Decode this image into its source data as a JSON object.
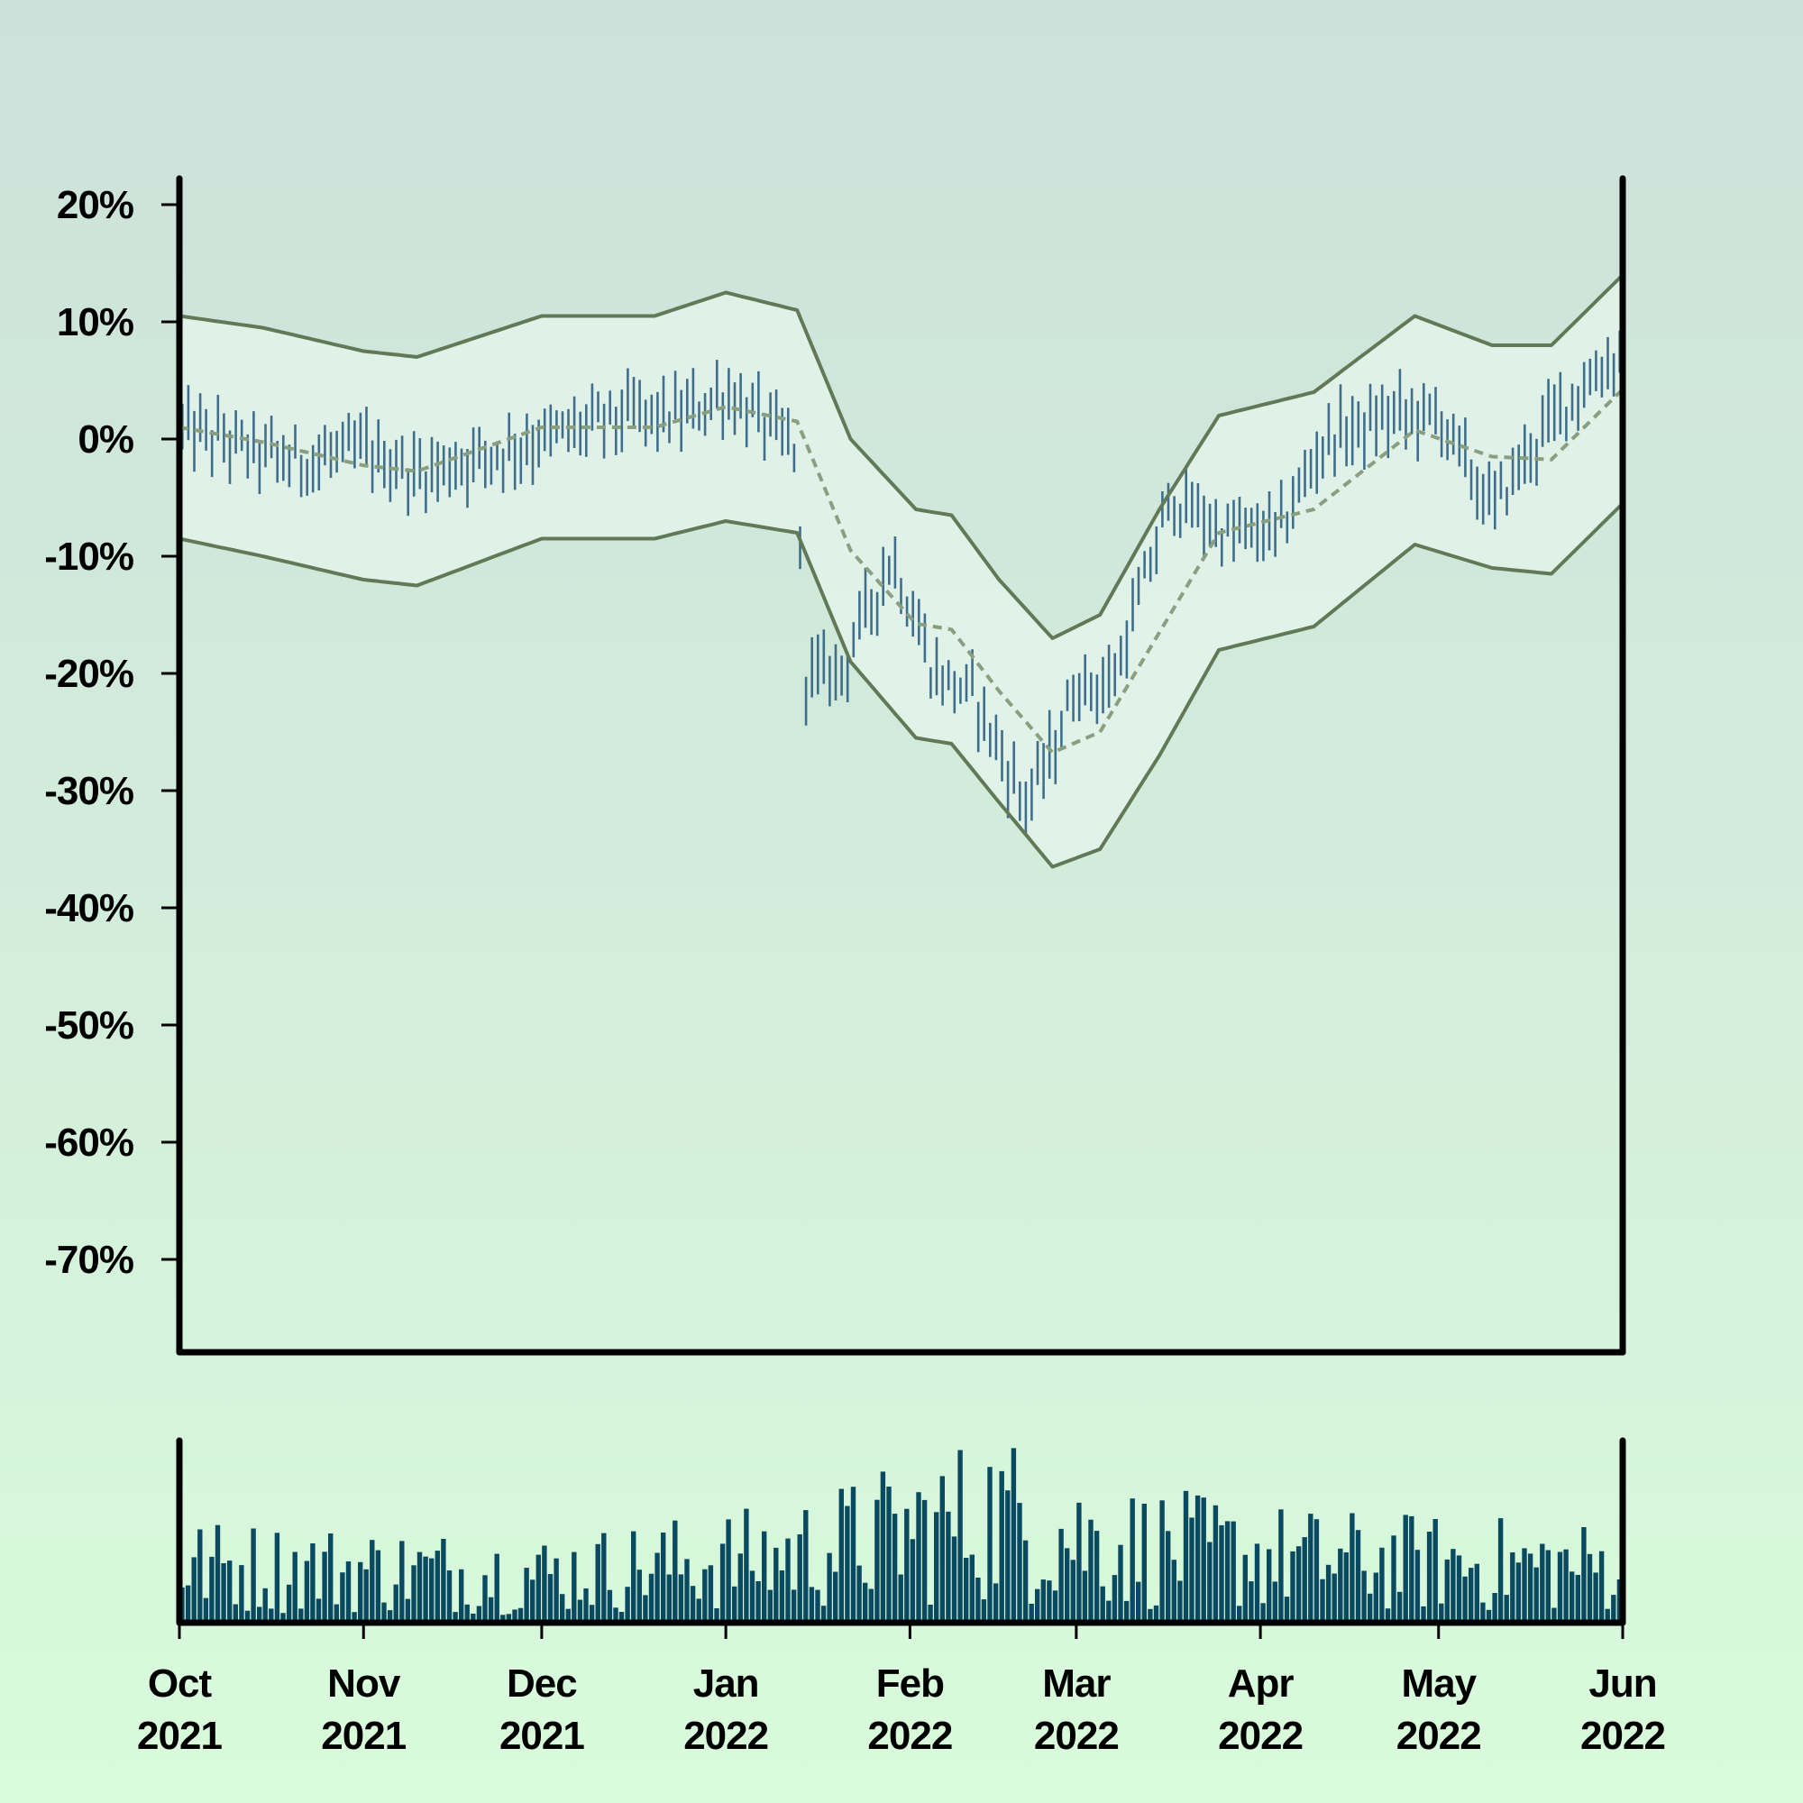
{
  "chart_data": {
    "type": "ohlc",
    "title": "",
    "xlabel": "",
    "ylabel": "",
    "ylim": [
      -78,
      22
    ],
    "y_ticks": [
      "20%",
      "10%",
      "0%",
      "-10%",
      "-20%",
      "-30%",
      "-40%",
      "-50%",
      "-60%",
      "-70%"
    ],
    "y_tick_values": [
      20,
      10,
      0,
      -10,
      -20,
      -30,
      -40,
      -50,
      -60,
      -70
    ],
    "x_range": [
      "2021-10-01",
      "2022-06-01"
    ],
    "x_ticks": [
      {
        "date": "2021-10-01",
        "month": "Oct",
        "year": "2021"
      },
      {
        "date": "2021-11-01",
        "month": "Nov",
        "year": "2021"
      },
      {
        "date": "2021-12-01",
        "month": "Dec",
        "year": "2021"
      },
      {
        "date": "2022-01-01",
        "month": "Jan",
        "year": "2022"
      },
      {
        "date": "2022-02-01",
        "month": "Feb",
        "year": "2022"
      },
      {
        "date": "2022-03-01",
        "month": "Mar",
        "year": "2022"
      },
      {
        "date": "2022-04-01",
        "month": "Apr",
        "year": "2022"
      },
      {
        "date": "2022-05-01",
        "month": "May",
        "year": "2022"
      },
      {
        "date": "2022-06-01",
        "month": "Jun",
        "year": "2022"
      }
    ],
    "price_anchors": [
      {
        "date": "2021-10-01",
        "value": 1
      },
      {
        "date": "2021-10-20",
        "value": -2
      },
      {
        "date": "2021-11-01",
        "value": -1
      },
      {
        "date": "2021-11-10",
        "value": -3
      },
      {
        "date": "2021-12-01",
        "value": 0
      },
      {
        "date": "2021-12-15",
        "value": 2
      },
      {
        "date": "2021-12-25",
        "value": 2
      },
      {
        "date": "2022-01-01",
        "value": 4
      },
      {
        "date": "2022-01-13",
        "value": -1
      },
      {
        "date": "2022-01-14",
        "value": -20
      },
      {
        "date": "2022-01-20",
        "value": -20
      },
      {
        "date": "2022-01-29",
        "value": -10
      },
      {
        "date": "2022-02-05",
        "value": -20
      },
      {
        "date": "2022-02-12",
        "value": -22
      },
      {
        "date": "2022-02-20",
        "value": -31
      },
      {
        "date": "2022-02-24",
        "value": -28
      },
      {
        "date": "2022-03-01",
        "value": -21
      },
      {
        "date": "2022-03-07",
        "value": -21
      },
      {
        "date": "2022-03-17",
        "value": -5
      },
      {
        "date": "2022-03-26",
        "value": -8
      },
      {
        "date": "2022-04-04",
        "value": -8
      },
      {
        "date": "2022-04-12",
        "value": 0
      },
      {
        "date": "2022-04-24",
        "value": 2
      },
      {
        "date": "2022-05-01",
        "value": 2
      },
      {
        "date": "2022-05-10",
        "value": -6
      },
      {
        "date": "2022-05-15",
        "value": -2
      },
      {
        "date": "2022-05-22",
        "value": 3
      },
      {
        "date": "2022-05-31",
        "value": 7
      }
    ],
    "upper_band": [
      {
        "date": "2021-10-01",
        "value": 10.5
      },
      {
        "date": "2021-10-15",
        "value": 9.5
      },
      {
        "date": "2021-11-01",
        "value": 7.5
      },
      {
        "date": "2021-11-10",
        "value": 7
      },
      {
        "date": "2021-12-01",
        "value": 10.5
      },
      {
        "date": "2021-12-20",
        "value": 10.5
      },
      {
        "date": "2022-01-01",
        "value": 12.5
      },
      {
        "date": "2022-01-13",
        "value": 11
      },
      {
        "date": "2022-01-22",
        "value": 0
      },
      {
        "date": "2022-02-02",
        "value": -6
      },
      {
        "date": "2022-02-08",
        "value": -6.5
      },
      {
        "date": "2022-02-16",
        "value": -12
      },
      {
        "date": "2022-02-25",
        "value": -17
      },
      {
        "date": "2022-03-05",
        "value": -15
      },
      {
        "date": "2022-03-15",
        "value": -6
      },
      {
        "date": "2022-03-25",
        "value": 2
      },
      {
        "date": "2022-04-10",
        "value": 4
      },
      {
        "date": "2022-04-27",
        "value": 10.5
      },
      {
        "date": "2022-05-10",
        "value": 8
      },
      {
        "date": "2022-05-20",
        "value": 8
      },
      {
        "date": "2022-06-01",
        "value": 14
      }
    ],
    "lower_band": [
      {
        "date": "2021-10-01",
        "value": -8.5
      },
      {
        "date": "2021-10-15",
        "value": -10
      },
      {
        "date": "2021-11-01",
        "value": -12
      },
      {
        "date": "2021-11-10",
        "value": -12.5
      },
      {
        "date": "2021-12-01",
        "value": -8.5
      },
      {
        "date": "2021-12-20",
        "value": -8.5
      },
      {
        "date": "2022-01-01",
        "value": -7
      },
      {
        "date": "2022-01-13",
        "value": -8
      },
      {
        "date": "2022-01-22",
        "value": -19
      },
      {
        "date": "2022-02-02",
        "value": -25.5
      },
      {
        "date": "2022-02-08",
        "value": -26
      },
      {
        "date": "2022-02-16",
        "value": -31
      },
      {
        "date": "2022-02-25",
        "value": -36.5
      },
      {
        "date": "2022-03-05",
        "value": -35
      },
      {
        "date": "2022-03-15",
        "value": -27
      },
      {
        "date": "2022-03-25",
        "value": -18
      },
      {
        "date": "2022-04-10",
        "value": -16
      },
      {
        "date": "2022-04-27",
        "value": -9
      },
      {
        "date": "2022-05-10",
        "value": -11
      },
      {
        "date": "2022-05-20",
        "value": -11.5
      },
      {
        "date": "2022-06-01",
        "value": -5.5
      }
    ],
    "volume_anchors": [
      {
        "date": "2021-10-01",
        "value": 0.33
      },
      {
        "date": "2021-12-01",
        "value": 0.28
      },
      {
        "date": "2022-01-10",
        "value": 0.38
      },
      {
        "date": "2022-02-15",
        "value": 0.62
      },
      {
        "date": "2022-03-05",
        "value": 0.45
      },
      {
        "date": "2022-04-10",
        "value": 0.36
      },
      {
        "date": "2022-06-01",
        "value": 0.32
      }
    ],
    "colors": {
      "candle": "#3f6e8c",
      "band": "#627957",
      "middle": "#8a9e80",
      "band_fill": "#e6f4ec",
      "volume": "#0a4a60",
      "axis": "#000000"
    }
  }
}
